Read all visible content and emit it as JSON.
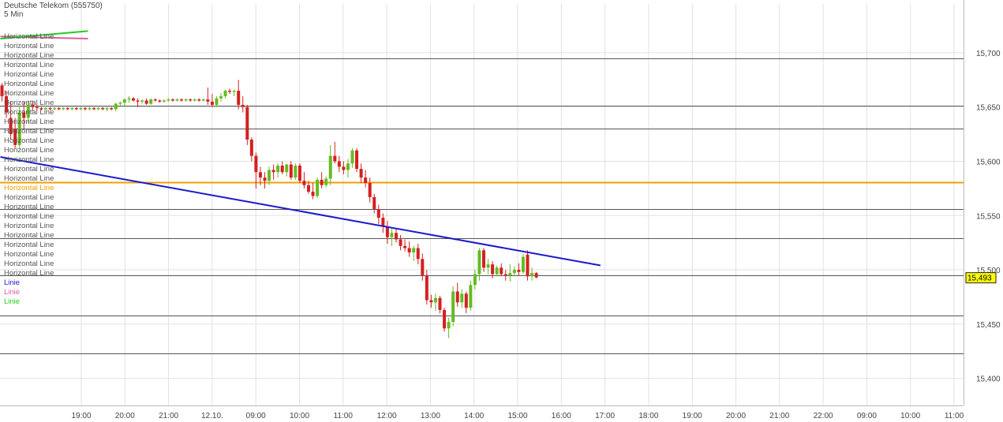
{
  "header": {
    "instrument": "Deutsche Telekom (555750)",
    "interval": "5 Min"
  },
  "legend": {
    "items": [
      {
        "label": "Horizontal Line",
        "color": "#555555"
      },
      {
        "label": "Horizontal Line",
        "color": "#555555"
      },
      {
        "label": "Horizontal Line",
        "color": "#555555"
      },
      {
        "label": "Horizontal Line",
        "color": "#555555"
      },
      {
        "label": "Horizontal Line",
        "color": "#555555"
      },
      {
        "label": "Horizontal Line",
        "color": "#555555"
      },
      {
        "label": "Horizontal Line",
        "color": "#555555"
      },
      {
        "label": "Horizontal Line",
        "color": "#555555"
      },
      {
        "label": "Horizontal Line",
        "color": "#555555"
      },
      {
        "label": "Horizontal Line",
        "color": "#555555"
      },
      {
        "label": "Horizontal Line",
        "color": "#555555"
      },
      {
        "label": "Horizontal Line",
        "color": "#555555"
      },
      {
        "label": "Horizontal Line",
        "color": "#555555"
      },
      {
        "label": "Horizontal Line",
        "color": "#555555"
      },
      {
        "label": "Horizontal Line",
        "color": "#555555"
      },
      {
        "label": "Horizontal Line",
        "color": "#555555"
      },
      {
        "label": "Horizontal Line",
        "color": "#f0a000"
      },
      {
        "label": "Horizontal Line",
        "color": "#555555"
      },
      {
        "label": "Horizontal Line",
        "color": "#555555"
      },
      {
        "label": "Horizontal Line",
        "color": "#555555"
      },
      {
        "label": "Horizontal Line",
        "color": "#555555"
      },
      {
        "label": "Horizontal Line",
        "color": "#555555"
      },
      {
        "label": "Horizontal Line",
        "color": "#555555"
      },
      {
        "label": "Horizontal Line",
        "color": "#555555"
      },
      {
        "label": "Horizontal Line",
        "color": "#555555"
      },
      {
        "label": "Horizontal Line",
        "color": "#555555"
      },
      {
        "label": "Linie",
        "color": "#1a1acc"
      },
      {
        "label": "Linie",
        "color": "#e060a0"
      },
      {
        "label": "Linie",
        "color": "#22cc22"
      }
    ]
  },
  "chart_data": {
    "type": "candlestick",
    "ylim": [
      15.375,
      15.745
    ],
    "yticks": [
      {
        "value": 15.7,
        "label": "15,700"
      },
      {
        "value": 15.65,
        "label": "15,650"
      },
      {
        "value": 15.6,
        "label": "15,600"
      },
      {
        "value": 15.55,
        "label": "15,550"
      },
      {
        "value": 15.5,
        "label": "15,500"
      },
      {
        "value": 15.45,
        "label": "15,450"
      },
      {
        "value": 15.4,
        "label": "15,400"
      }
    ],
    "xticks": [
      "19:00",
      "20:00",
      "21:00",
      "12.10.",
      "09:00",
      "10:00",
      "11:00",
      "12:00",
      "13:00",
      "14:00",
      "15:00",
      "16:00",
      "17:00",
      "18:00",
      "19:00",
      "20:00",
      "21:00",
      "22:00",
      "09:00",
      "10:00",
      "11:00"
    ],
    "last_price": {
      "value": 15.493,
      "label": "15,493"
    },
    "horizontal_lines": [
      {
        "value": 15.695,
        "color": "#555555"
      },
      {
        "value": 15.651,
        "color": "#555555"
      },
      {
        "value": 15.63,
        "color": "#555555"
      },
      {
        "value": 15.581,
        "color": "#f0a000"
      },
      {
        "value": 15.556,
        "color": "#555555"
      },
      {
        "value": 15.529,
        "color": "#555555"
      },
      {
        "value": 15.495,
        "color": "#555555"
      },
      {
        "value": 15.458,
        "color": "#555555"
      },
      {
        "value": 15.423,
        "color": "#555555"
      }
    ],
    "trend_lines": [
      {
        "color": "#1a1acc",
        "x1": 0,
        "y1": 15.604,
        "x2": 137,
        "y2": 15.504
      },
      {
        "color": "#e060a0",
        "x1": 0,
        "y1": 15.715,
        "x2": 20,
        "y2": 15.713
      },
      {
        "color": "#22cc22",
        "x1": 0,
        "y1": 15.713,
        "x2": 20,
        "y2": 15.72
      }
    ],
    "candles": [
      {
        "o": 15.67,
        "h": 15.672,
        "l": 15.655,
        "c": 15.66
      },
      {
        "o": 15.66,
        "h": 15.665,
        "l": 15.64,
        "c": 15.645
      },
      {
        "o": 15.64,
        "h": 15.655,
        "l": 15.62,
        "c": 15.625
      },
      {
        "o": 15.63,
        "h": 15.64,
        "l": 15.612,
        "c": 15.615
      },
      {
        "o": 15.615,
        "h": 15.65,
        "l": 15.612,
        "c": 15.645
      },
      {
        "o": 15.645,
        "h": 15.655,
        "l": 15.63,
        "c": 15.64
      },
      {
        "o": 15.64,
        "h": 15.656,
        "l": 15.635,
        "c": 15.652
      },
      {
        "o": 15.652,
        "h": 15.656,
        "l": 15.646,
        "c": 15.65
      },
      {
        "o": 15.65,
        "h": 15.652,
        "l": 15.647,
        "c": 15.649
      },
      {
        "o": 15.649,
        "h": 15.65,
        "l": 15.647,
        "c": 15.648
      },
      {
        "o": 15.648,
        "h": 15.65,
        "l": 15.647,
        "c": 15.649
      },
      {
        "o": 15.649,
        "h": 15.65,
        "l": 15.647,
        "c": 15.648
      },
      {
        "o": 15.648,
        "h": 15.65,
        "l": 15.647,
        "c": 15.649
      },
      {
        "o": 15.649,
        "h": 15.65,
        "l": 15.647,
        "c": 15.648
      },
      {
        "o": 15.648,
        "h": 15.65,
        "l": 15.647,
        "c": 15.649
      },
      {
        "o": 15.649,
        "h": 15.65,
        "l": 15.647,
        "c": 15.648
      },
      {
        "o": 15.648,
        "h": 15.65,
        "l": 15.647,
        "c": 15.649
      },
      {
        "o": 15.649,
        "h": 15.65,
        "l": 15.647,
        "c": 15.648
      },
      {
        "o": 15.648,
        "h": 15.65,
        "l": 15.647,
        "c": 15.649
      },
      {
        "o": 15.649,
        "h": 15.65,
        "l": 15.647,
        "c": 15.648
      },
      {
        "o": 15.648,
        "h": 15.65,
        "l": 15.647,
        "c": 15.649
      },
      {
        "o": 15.649,
        "h": 15.65,
        "l": 15.647,
        "c": 15.648
      },
      {
        "o": 15.648,
        "h": 15.65,
        "l": 15.647,
        "c": 15.649
      },
      {
        "o": 15.649,
        "h": 15.65,
        "l": 15.647,
        "c": 15.648
      },
      {
        "o": 15.648,
        "h": 15.65,
        "l": 15.646,
        "c": 15.649
      },
      {
        "o": 15.649,
        "h": 15.65,
        "l": 15.647,
        "c": 15.648
      },
      {
        "o": 15.648,
        "h": 15.654,
        "l": 15.646,
        "c": 15.653
      },
      {
        "o": 15.653,
        "h": 15.655,
        "l": 15.651,
        "c": 15.654
      },
      {
        "o": 15.654,
        "h": 15.658,
        "l": 15.65,
        "c": 15.657
      },
      {
        "o": 15.657,
        "h": 15.66,
        "l": 15.654,
        "c": 15.658
      },
      {
        "o": 15.658,
        "h": 15.659,
        "l": 15.655,
        "c": 15.656
      },
      {
        "o": 15.656,
        "h": 15.658,
        "l": 15.65,
        "c": 15.655
      },
      {
        "o": 15.655,
        "h": 15.657,
        "l": 15.653,
        "c": 15.656
      },
      {
        "o": 15.656,
        "h": 15.658,
        "l": 15.652,
        "c": 15.653
      },
      {
        "o": 15.653,
        "h": 15.658,
        "l": 15.652,
        "c": 15.657
      },
      {
        "o": 15.657,
        "h": 15.658,
        "l": 15.655,
        "c": 15.656
      },
      {
        "o": 15.656,
        "h": 15.657,
        "l": 15.654,
        "c": 15.655
      },
      {
        "o": 15.655,
        "h": 15.657,
        "l": 15.654,
        "c": 15.656
      },
      {
        "o": 15.656,
        "h": 15.658,
        "l": 15.655,
        "c": 15.657
      },
      {
        "o": 15.657,
        "h": 15.658,
        "l": 15.655,
        "c": 15.656
      },
      {
        "o": 15.656,
        "h": 15.658,
        "l": 15.655,
        "c": 15.657
      },
      {
        "o": 15.657,
        "h": 15.658,
        "l": 15.655,
        "c": 15.656
      },
      {
        "o": 15.656,
        "h": 15.658,
        "l": 15.655,
        "c": 15.657
      },
      {
        "o": 15.657,
        "h": 15.658,
        "l": 15.655,
        "c": 15.656
      },
      {
        "o": 15.656,
        "h": 15.658,
        "l": 15.655,
        "c": 15.657
      },
      {
        "o": 15.657,
        "h": 15.658,
        "l": 15.655,
        "c": 15.656
      },
      {
        "o": 15.656,
        "h": 15.658,
        "l": 15.655,
        "c": 15.657
      },
      {
        "o": 15.657,
        "h": 15.668,
        "l": 15.652,
        "c": 15.655
      },
      {
        "o": 15.655,
        "h": 15.662,
        "l": 15.65,
        "c": 15.652
      },
      {
        "o": 15.652,
        "h": 15.66,
        "l": 15.65,
        "c": 15.658
      },
      {
        "o": 15.658,
        "h": 15.663,
        "l": 15.655,
        "c": 15.66
      },
      {
        "o": 15.66,
        "h": 15.666,
        "l": 15.658,
        "c": 15.665
      },
      {
        "o": 15.665,
        "h": 15.667,
        "l": 15.662,
        "c": 15.664
      },
      {
        "o": 15.664,
        "h": 15.666,
        "l": 15.66,
        "c": 15.665
      },
      {
        "o": 15.665,
        "h": 15.675,
        "l": 15.648,
        "c": 15.652
      },
      {
        "o": 15.652,
        "h": 15.66,
        "l": 15.645,
        "c": 15.65
      },
      {
        "o": 15.65,
        "h": 15.652,
        "l": 15.615,
        "c": 15.62
      },
      {
        "o": 15.62,
        "h": 15.622,
        "l": 15.6,
        "c": 15.605
      },
      {
        "o": 15.605,
        "h": 15.608,
        "l": 15.575,
        "c": 15.59
      },
      {
        "o": 15.59,
        "h": 15.595,
        "l": 15.578,
        "c": 15.585
      },
      {
        "o": 15.585,
        "h": 15.59,
        "l": 15.575,
        "c": 15.582
      },
      {
        "o": 15.582,
        "h": 15.595,
        "l": 15.578,
        "c": 15.592
      },
      {
        "o": 15.592,
        "h": 15.597,
        "l": 15.583,
        "c": 15.59
      },
      {
        "o": 15.59,
        "h": 15.598,
        "l": 15.585,
        "c": 15.596
      },
      {
        "o": 15.596,
        "h": 15.6,
        "l": 15.588,
        "c": 15.59
      },
      {
        "o": 15.59,
        "h": 15.598,
        "l": 15.586,
        "c": 15.597
      },
      {
        "o": 15.597,
        "h": 15.6,
        "l": 15.583,
        "c": 15.585
      },
      {
        "o": 15.585,
        "h": 15.598,
        "l": 15.583,
        "c": 15.596
      },
      {
        "o": 15.596,
        "h": 15.598,
        "l": 15.58,
        "c": 15.582
      },
      {
        "o": 15.582,
        "h": 15.59,
        "l": 15.575,
        "c": 15.578
      },
      {
        "o": 15.578,
        "h": 15.582,
        "l": 15.57,
        "c": 15.572
      },
      {
        "o": 15.572,
        "h": 15.58,
        "l": 15.565,
        "c": 15.568
      },
      {
        "o": 15.568,
        "h": 15.585,
        "l": 15.566,
        "c": 15.583
      },
      {
        "o": 15.583,
        "h": 15.59,
        "l": 15.575,
        "c": 15.578
      },
      {
        "o": 15.578,
        "h": 15.586,
        "l": 15.576,
        "c": 15.584
      },
      {
        "o": 15.584,
        "h": 15.615,
        "l": 15.578,
        "c": 15.605
      },
      {
        "o": 15.605,
        "h": 15.618,
        "l": 15.598,
        "c": 15.6
      },
      {
        "o": 15.6,
        "h": 15.605,
        "l": 15.59,
        "c": 15.595
      },
      {
        "o": 15.595,
        "h": 15.6,
        "l": 15.588,
        "c": 15.592
      },
      {
        "o": 15.592,
        "h": 15.602,
        "l": 15.585,
        "c": 15.598
      },
      {
        "o": 15.598,
        "h": 15.612,
        "l": 15.594,
        "c": 15.61
      },
      {
        "o": 15.61,
        "h": 15.612,
        "l": 15.59,
        "c": 15.593
      },
      {
        "o": 15.593,
        "h": 15.598,
        "l": 15.58,
        "c": 15.585
      },
      {
        "o": 15.585,
        "h": 15.592,
        "l": 15.576,
        "c": 15.58
      },
      {
        "o": 15.58,
        "h": 15.585,
        "l": 15.562,
        "c": 15.567
      },
      {
        "o": 15.567,
        "h": 15.57,
        "l": 15.552,
        "c": 15.556
      },
      {
        "o": 15.556,
        "h": 15.56,
        "l": 15.542,
        "c": 15.548
      },
      {
        "o": 15.548,
        "h": 15.552,
        "l": 15.534,
        "c": 15.54
      },
      {
        "o": 15.54,
        "h": 15.545,
        "l": 15.524,
        "c": 15.53
      },
      {
        "o": 15.53,
        "h": 15.538,
        "l": 15.522,
        "c": 15.534
      },
      {
        "o": 15.534,
        "h": 15.538,
        "l": 15.525,
        "c": 15.528
      },
      {
        "o": 15.528,
        "h": 15.532,
        "l": 15.518,
        "c": 15.522
      },
      {
        "o": 15.522,
        "h": 15.528,
        "l": 15.517,
        "c": 15.52
      },
      {
        "o": 15.52,
        "h": 15.526,
        "l": 15.512,
        "c": 15.516
      },
      {
        "o": 15.516,
        "h": 15.522,
        "l": 15.508,
        "c": 15.52
      },
      {
        "o": 15.52,
        "h": 15.524,
        "l": 15.505,
        "c": 15.51
      },
      {
        "o": 15.51,
        "h": 15.515,
        "l": 15.49,
        "c": 15.495
      },
      {
        "o": 15.495,
        "h": 15.5,
        "l": 15.468,
        "c": 15.472
      },
      {
        "o": 15.472,
        "h": 15.477,
        "l": 15.465,
        "c": 15.47
      },
      {
        "o": 15.47,
        "h": 15.478,
        "l": 15.462,
        "c": 15.474
      },
      {
        "o": 15.474,
        "h": 15.476,
        "l": 15.46,
        "c": 15.463
      },
      {
        "o": 15.463,
        "h": 15.465,
        "l": 15.443,
        "c": 15.446
      },
      {
        "o": 15.446,
        "h": 15.456,
        "l": 15.437,
        "c": 15.452
      },
      {
        "o": 15.452,
        "h": 15.485,
        "l": 15.448,
        "c": 15.48
      },
      {
        "o": 15.48,
        "h": 15.488,
        "l": 15.466,
        "c": 15.47
      },
      {
        "o": 15.47,
        "h": 15.482,
        "l": 15.465,
        "c": 15.478
      },
      {
        "o": 15.478,
        "h": 15.48,
        "l": 15.46,
        "c": 15.465
      },
      {
        "o": 15.465,
        "h": 15.49,
        "l": 15.462,
        "c": 15.486
      },
      {
        "o": 15.486,
        "h": 15.5,
        "l": 15.482,
        "c": 15.496
      },
      {
        "o": 15.496,
        "h": 15.52,
        "l": 15.49,
        "c": 15.518
      },
      {
        "o": 15.518,
        "h": 15.52,
        "l": 15.498,
        "c": 15.502
      },
      {
        "o": 15.502,
        "h": 15.51,
        "l": 15.496,
        "c": 15.505
      },
      {
        "o": 15.505,
        "h": 15.508,
        "l": 15.492,
        "c": 15.496
      },
      {
        "o": 15.496,
        "h": 15.504,
        "l": 15.494,
        "c": 15.502
      },
      {
        "o": 15.502,
        "h": 15.506,
        "l": 15.494,
        "c": 15.496
      },
      {
        "o": 15.496,
        "h": 15.5,
        "l": 15.49,
        "c": 15.495
      },
      {
        "o": 15.495,
        "h": 15.505,
        "l": 15.489,
        "c": 15.497
      },
      {
        "o": 15.497,
        "h": 15.503,
        "l": 15.494,
        "c": 15.5
      },
      {
        "o": 15.5,
        "h": 15.506,
        "l": 15.495,
        "c": 15.498
      },
      {
        "o": 15.498,
        "h": 15.515,
        "l": 15.496,
        "c": 15.512
      },
      {
        "o": 15.514,
        "h": 15.518,
        "l": 15.49,
        "c": 15.494
      },
      {
        "o": 15.494,
        "h": 15.502,
        "l": 15.49,
        "c": 15.497
      },
      {
        "o": 15.497,
        "h": 15.498,
        "l": 15.492,
        "c": 15.493
      }
    ]
  }
}
